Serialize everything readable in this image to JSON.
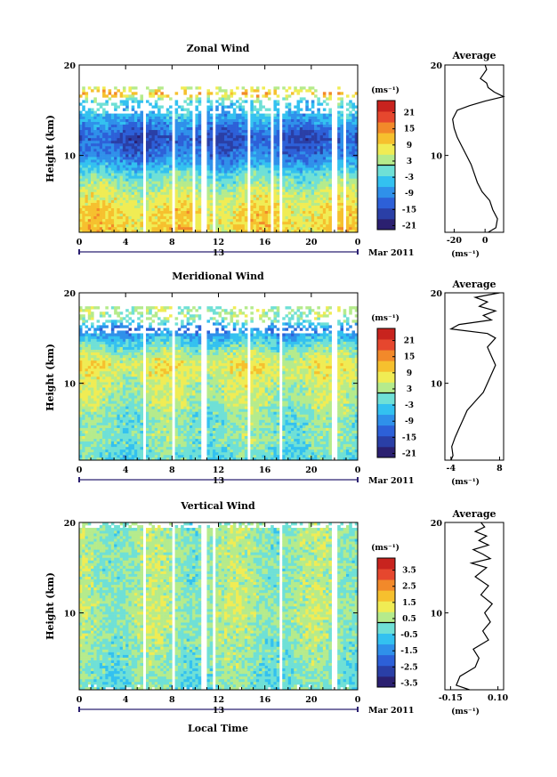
{
  "colors": {
    "colormap": [
      "#2b2070",
      "#2a3fa6",
      "#2d60d8",
      "#2f90ea",
      "#33c1f0",
      "#6fe0d6",
      "#b5eb8c",
      "#f0ec54",
      "#f6c02e",
      "#f2892a",
      "#e6472e",
      "#c8231e"
    ],
    "axis": "#000000",
    "time_axis_accent": "#2b2070",
    "background": "#ffffff"
  },
  "time_axis": {
    "ticks": [
      "0",
      "4",
      "8",
      "12",
      "16",
      "20",
      "0"
    ],
    "tick_values": [
      0,
      4,
      8,
      12,
      16,
      20,
      24
    ],
    "date_day": "13",
    "date_month": "Mar 2011",
    "label": "Local Time"
  },
  "chart_data": [
    {
      "type": "heatmap",
      "title": "Zonal Wind",
      "ylabel": "Height (km)",
      "xlim": [
        0,
        24
      ],
      "ylim": [
        1.5,
        20
      ],
      "yticks": [
        "10",
        "20"
      ],
      "ytick_values": [
        10,
        20
      ],
      "colorbar": {
        "unit": "(ms⁻¹)",
        "labels": [
          "21",
          "15",
          "9",
          "3",
          "-3",
          "-9",
          "-15",
          "-21"
        ],
        "range": [
          -24,
          24
        ]
      },
      "field": {
        "profile": [
          [
            2,
            8
          ],
          [
            4,
            7
          ],
          [
            6,
            3
          ],
          [
            8,
            -3
          ],
          [
            10,
            -12
          ],
          [
            12,
            -16
          ],
          [
            14,
            -8
          ],
          [
            16,
            -4
          ],
          [
            16.8,
            12
          ],
          [
            17.8,
            -1
          ],
          [
            19,
            3
          ],
          [
            20,
            1
          ]
        ],
        "gaps": [
          [
            5.4,
            5.8
          ],
          [
            8.0,
            8.3
          ],
          [
            9.8,
            10.1
          ],
          [
            10.6,
            11.0
          ],
          [
            11.5,
            11.8
          ],
          [
            14.5,
            14.7
          ],
          [
            16.6,
            16.8
          ],
          [
            17.2,
            17.5
          ],
          [
            21.8,
            22.2
          ],
          [
            22.8,
            23.0
          ]
        ],
        "top_cutoff": 14.5
      },
      "average_profile": {
        "title": "Average",
        "xlabel": "(ms⁻¹)",
        "xticks": [
          "-20",
          "0"
        ],
        "xtick_values": [
          -20,
          0
        ],
        "xlim": [
          -26,
          12
        ],
        "height_km": [
          1.5,
          2,
          3,
          4,
          5,
          6,
          7,
          8,
          9,
          10,
          11,
          12,
          13,
          14,
          15,
          15.5,
          16,
          16.5,
          17,
          17.5,
          18,
          18.5,
          19,
          19.5,
          20
        ],
        "value": [
          2,
          7,
          8,
          5,
          3,
          -2,
          -5,
          -7,
          -9,
          -12,
          -15,
          -18,
          -20,
          -21,
          -18,
          -10,
          0,
          12,
          6,
          2,
          1,
          -3,
          -1,
          1,
          0
        ]
      }
    },
    {
      "type": "heatmap",
      "title": "Meridional Wind",
      "ylabel": "Height (km)",
      "xlim": [
        0,
        24
      ],
      "ylim": [
        1.5,
        20
      ],
      "yticks": [
        "10",
        "20"
      ],
      "ytick_values": [
        10,
        20
      ],
      "colorbar": {
        "unit": "(ms⁻¹)",
        "labels": [
          "21",
          "15",
          "9",
          "3",
          "-3",
          "-9",
          "-15",
          "-21"
        ],
        "range": [
          -24,
          24
        ]
      },
      "field": {
        "profile": [
          [
            2,
            -3
          ],
          [
            4,
            0
          ],
          [
            6,
            -1
          ],
          [
            8,
            2
          ],
          [
            10,
            3
          ],
          [
            12,
            6
          ],
          [
            13,
            3
          ],
          [
            15,
            -6
          ],
          [
            16,
            -12
          ],
          [
            17,
            0
          ],
          [
            18,
            2
          ],
          [
            20,
            0
          ]
        ],
        "gaps": [
          [
            5.4,
            5.8
          ],
          [
            8.0,
            8.3
          ],
          [
            10.6,
            11.0
          ],
          [
            14.5,
            14.7
          ],
          [
            17.2,
            17.5
          ],
          [
            21.8,
            22.2
          ]
        ],
        "top_cutoff": 15.5
      },
      "average_profile": {
        "title": "Average",
        "xlabel": "(ms⁻¹)",
        "xticks": [
          "-4",
          "8"
        ],
        "xtick_values": [
          -4,
          8
        ],
        "xlim": [
          -5.5,
          9
        ],
        "height_km": [
          1.5,
          2,
          3,
          4,
          5,
          6,
          7,
          8,
          9,
          10,
          11,
          12,
          13,
          14,
          15,
          15.5,
          16,
          16.5,
          17,
          17.5,
          18,
          18.5,
          19,
          19.5,
          20
        ],
        "value": [
          -4,
          -3.5,
          -3.8,
          -3,
          -2,
          -1,
          0,
          2,
          4,
          5,
          6,
          7,
          6,
          5,
          7,
          5,
          -4,
          -2,
          6,
          4,
          7,
          3,
          5,
          2,
          8
        ]
      }
    },
    {
      "type": "heatmap",
      "title": "Vertical Wind",
      "ylabel": "Height (km)",
      "xlabel": "Local Time",
      "xlim": [
        0,
        24
      ],
      "ylim": [
        1.5,
        20
      ],
      "yticks": [
        "10",
        "20"
      ],
      "ytick_values": [
        10,
        20
      ],
      "colorbar": {
        "unit": "(ms⁻¹)",
        "labels": [
          "3.5",
          "2.5",
          "1.5",
          "0.5",
          "-0.5",
          "-1.5",
          "-2.5",
          "-3.5"
        ],
        "range": [
          -4,
          4
        ]
      },
      "field": {
        "profile": [
          [
            2,
            -0.3
          ],
          [
            6,
            0
          ],
          [
            10,
            0.3
          ],
          [
            14,
            0.1
          ],
          [
            18,
            0.2
          ],
          [
            20,
            0
          ]
        ],
        "gaps": [
          [
            5.4,
            5.8
          ],
          [
            8.0,
            8.3
          ],
          [
            10.6,
            11.0
          ],
          [
            11.5,
            11.8
          ],
          [
            17.2,
            17.5
          ],
          [
            21.8,
            22.2
          ]
        ],
        "top_cutoff": 19.5
      },
      "average_profile": {
        "title": "Average",
        "xlabel": "(ms⁻¹)",
        "xticks": [
          "-0.15",
          "0.10"
        ],
        "xtick_values": [
          -0.15,
          0.1
        ],
        "xlim": [
          -0.18,
          0.13
        ],
        "height_km": [
          1.5,
          2,
          3,
          4,
          5,
          6,
          7,
          8,
          9,
          10,
          11,
          12,
          13,
          14,
          15,
          15.5,
          16,
          16.5,
          17,
          17.5,
          18,
          18.5,
          19,
          19.5,
          20
        ],
        "value": [
          -0.05,
          -0.12,
          -0.1,
          -0.02,
          0.0,
          -0.03,
          0.05,
          0.02,
          0.06,
          0.03,
          0.07,
          0.01,
          0.05,
          -0.02,
          0.04,
          -0.04,
          0.06,
          0.02,
          -0.03,
          0.05,
          0.0,
          0.04,
          -0.02,
          0.03,
          0.01
        ]
      }
    }
  ]
}
